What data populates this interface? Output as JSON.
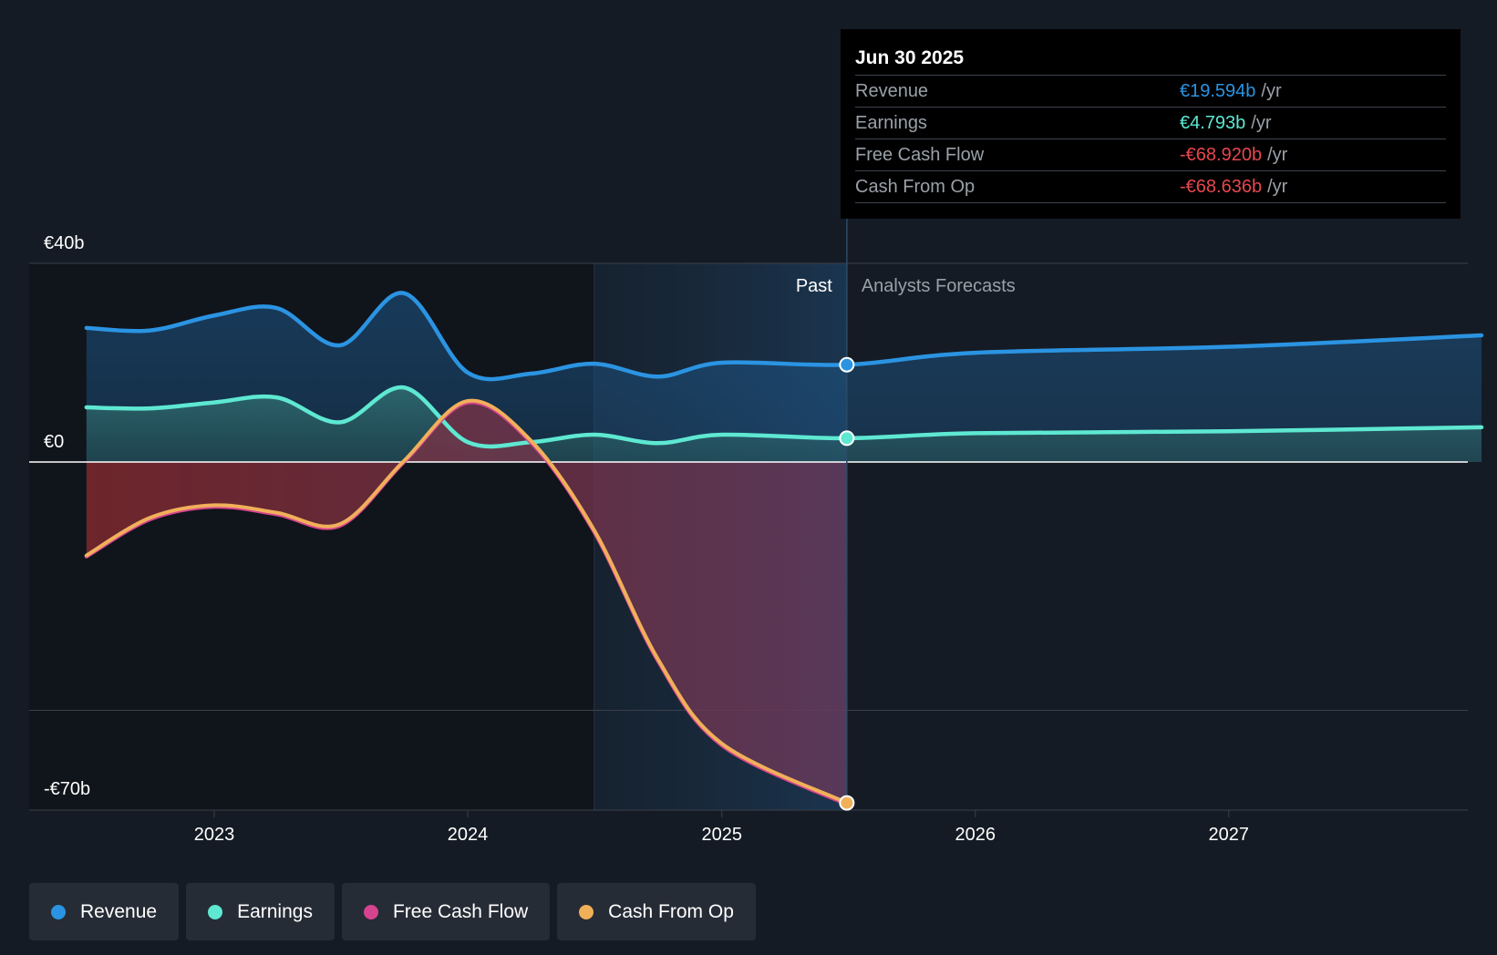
{
  "chart_data": {
    "type": "area",
    "y_axis_labels": [
      "€40b",
      "€0",
      "-€70b"
    ],
    "x_tick_labels": [
      "2023",
      "2024",
      "2025",
      "2026",
      "2027"
    ],
    "ylim": [
      -70,
      40
    ],
    "grid": "horizontal",
    "legend_position": "bottom-left",
    "divider_date": "2025-06-30",
    "past_label": "Past",
    "forecast_label": "Analysts Forecasts",
    "series": [
      {
        "name": "Revenue",
        "color": "#2b94e2",
        "points": [
          [
            "2022-07-01",
            27.0
          ],
          [
            "2022-10-01",
            26.5
          ],
          [
            "2023-01-01",
            29.5
          ],
          [
            "2023-04-01",
            31.0
          ],
          [
            "2023-07-01",
            23.5
          ],
          [
            "2023-10-01",
            34.0
          ],
          [
            "2024-01-01",
            18.0
          ],
          [
            "2024-04-01",
            17.8
          ],
          [
            "2024-07-01",
            19.8
          ],
          [
            "2024-10-01",
            17.2
          ],
          [
            "2025-01-01",
            20.0
          ],
          [
            "2025-06-30",
            19.594
          ],
          [
            "2026-01-01",
            22.0
          ],
          [
            "2027-01-01",
            23.2
          ],
          [
            "2027-12-31",
            25.5
          ]
        ]
      },
      {
        "name": "Earnings",
        "color": "#5ee8d2",
        "points": [
          [
            "2022-07-01",
            11.0
          ],
          [
            "2022-10-01",
            10.8
          ],
          [
            "2023-01-01",
            12.0
          ],
          [
            "2023-04-01",
            13.0
          ],
          [
            "2023-07-01",
            8.0
          ],
          [
            "2023-10-01",
            15.0
          ],
          [
            "2024-01-01",
            4.0
          ],
          [
            "2024-04-01",
            4.0
          ],
          [
            "2024-07-01",
            5.5
          ],
          [
            "2024-10-01",
            3.8
          ],
          [
            "2025-01-01",
            5.5
          ],
          [
            "2025-06-30",
            4.793
          ],
          [
            "2026-01-01",
            5.8
          ],
          [
            "2027-01-01",
            6.2
          ],
          [
            "2027-12-31",
            7.0
          ]
        ]
      },
      {
        "name": "Free Cash Flow",
        "color": "#d6448f",
        "points": [
          [
            "2022-07-01",
            -19.0
          ],
          [
            "2022-10-01",
            -11.5
          ],
          [
            "2023-01-01",
            -9.0
          ],
          [
            "2023-04-01",
            -10.5
          ],
          [
            "2023-07-01",
            -12.8
          ],
          [
            "2023-10-01",
            0.0
          ],
          [
            "2024-01-01",
            12.0
          ],
          [
            "2024-04-01",
            4.0
          ],
          [
            "2024-07-01",
            -14.0
          ],
          [
            "2024-10-01",
            -40.0
          ],
          [
            "2025-01-01",
            -57.0
          ],
          [
            "2025-06-30",
            -68.92
          ]
        ]
      },
      {
        "name": "Cash From Op",
        "color": "#f0b05a",
        "points": [
          [
            "2022-07-01",
            -18.8
          ],
          [
            "2022-10-01",
            -11.2
          ],
          [
            "2023-01-01",
            -8.7
          ],
          [
            "2023-04-01",
            -10.2
          ],
          [
            "2023-07-01",
            -12.5
          ],
          [
            "2023-10-01",
            0.2
          ],
          [
            "2024-01-01",
            12.3
          ],
          [
            "2024-04-01",
            4.3
          ],
          [
            "2024-07-01",
            -13.7
          ],
          [
            "2024-10-01",
            -39.7
          ],
          [
            "2025-01-01",
            -56.7
          ],
          [
            "2025-06-30",
            -68.636
          ]
        ]
      }
    ]
  },
  "tooltip": {
    "date": "Jun 30 2025",
    "rows": [
      {
        "name": "Revenue",
        "value": "€19.594b",
        "unit": "/yr",
        "color": "#2b94e2"
      },
      {
        "name": "Earnings",
        "value": "€4.793b",
        "unit": "/yr",
        "color": "#5ee8d2"
      },
      {
        "name": "Free Cash Flow",
        "value": "-€68.920b",
        "unit": "/yr",
        "color": "#e8464e"
      },
      {
        "name": "Cash From Op",
        "value": "-€68.636b",
        "unit": "/yr",
        "color": "#e8464e"
      }
    ]
  },
  "legend": [
    {
      "label": "Revenue",
      "color": "#2b94e2"
    },
    {
      "label": "Earnings",
      "color": "#5ee8d2"
    },
    {
      "label": "Free Cash Flow",
      "color": "#d6448f"
    },
    {
      "label": "Cash From Op",
      "color": "#f0b05a"
    }
  ]
}
